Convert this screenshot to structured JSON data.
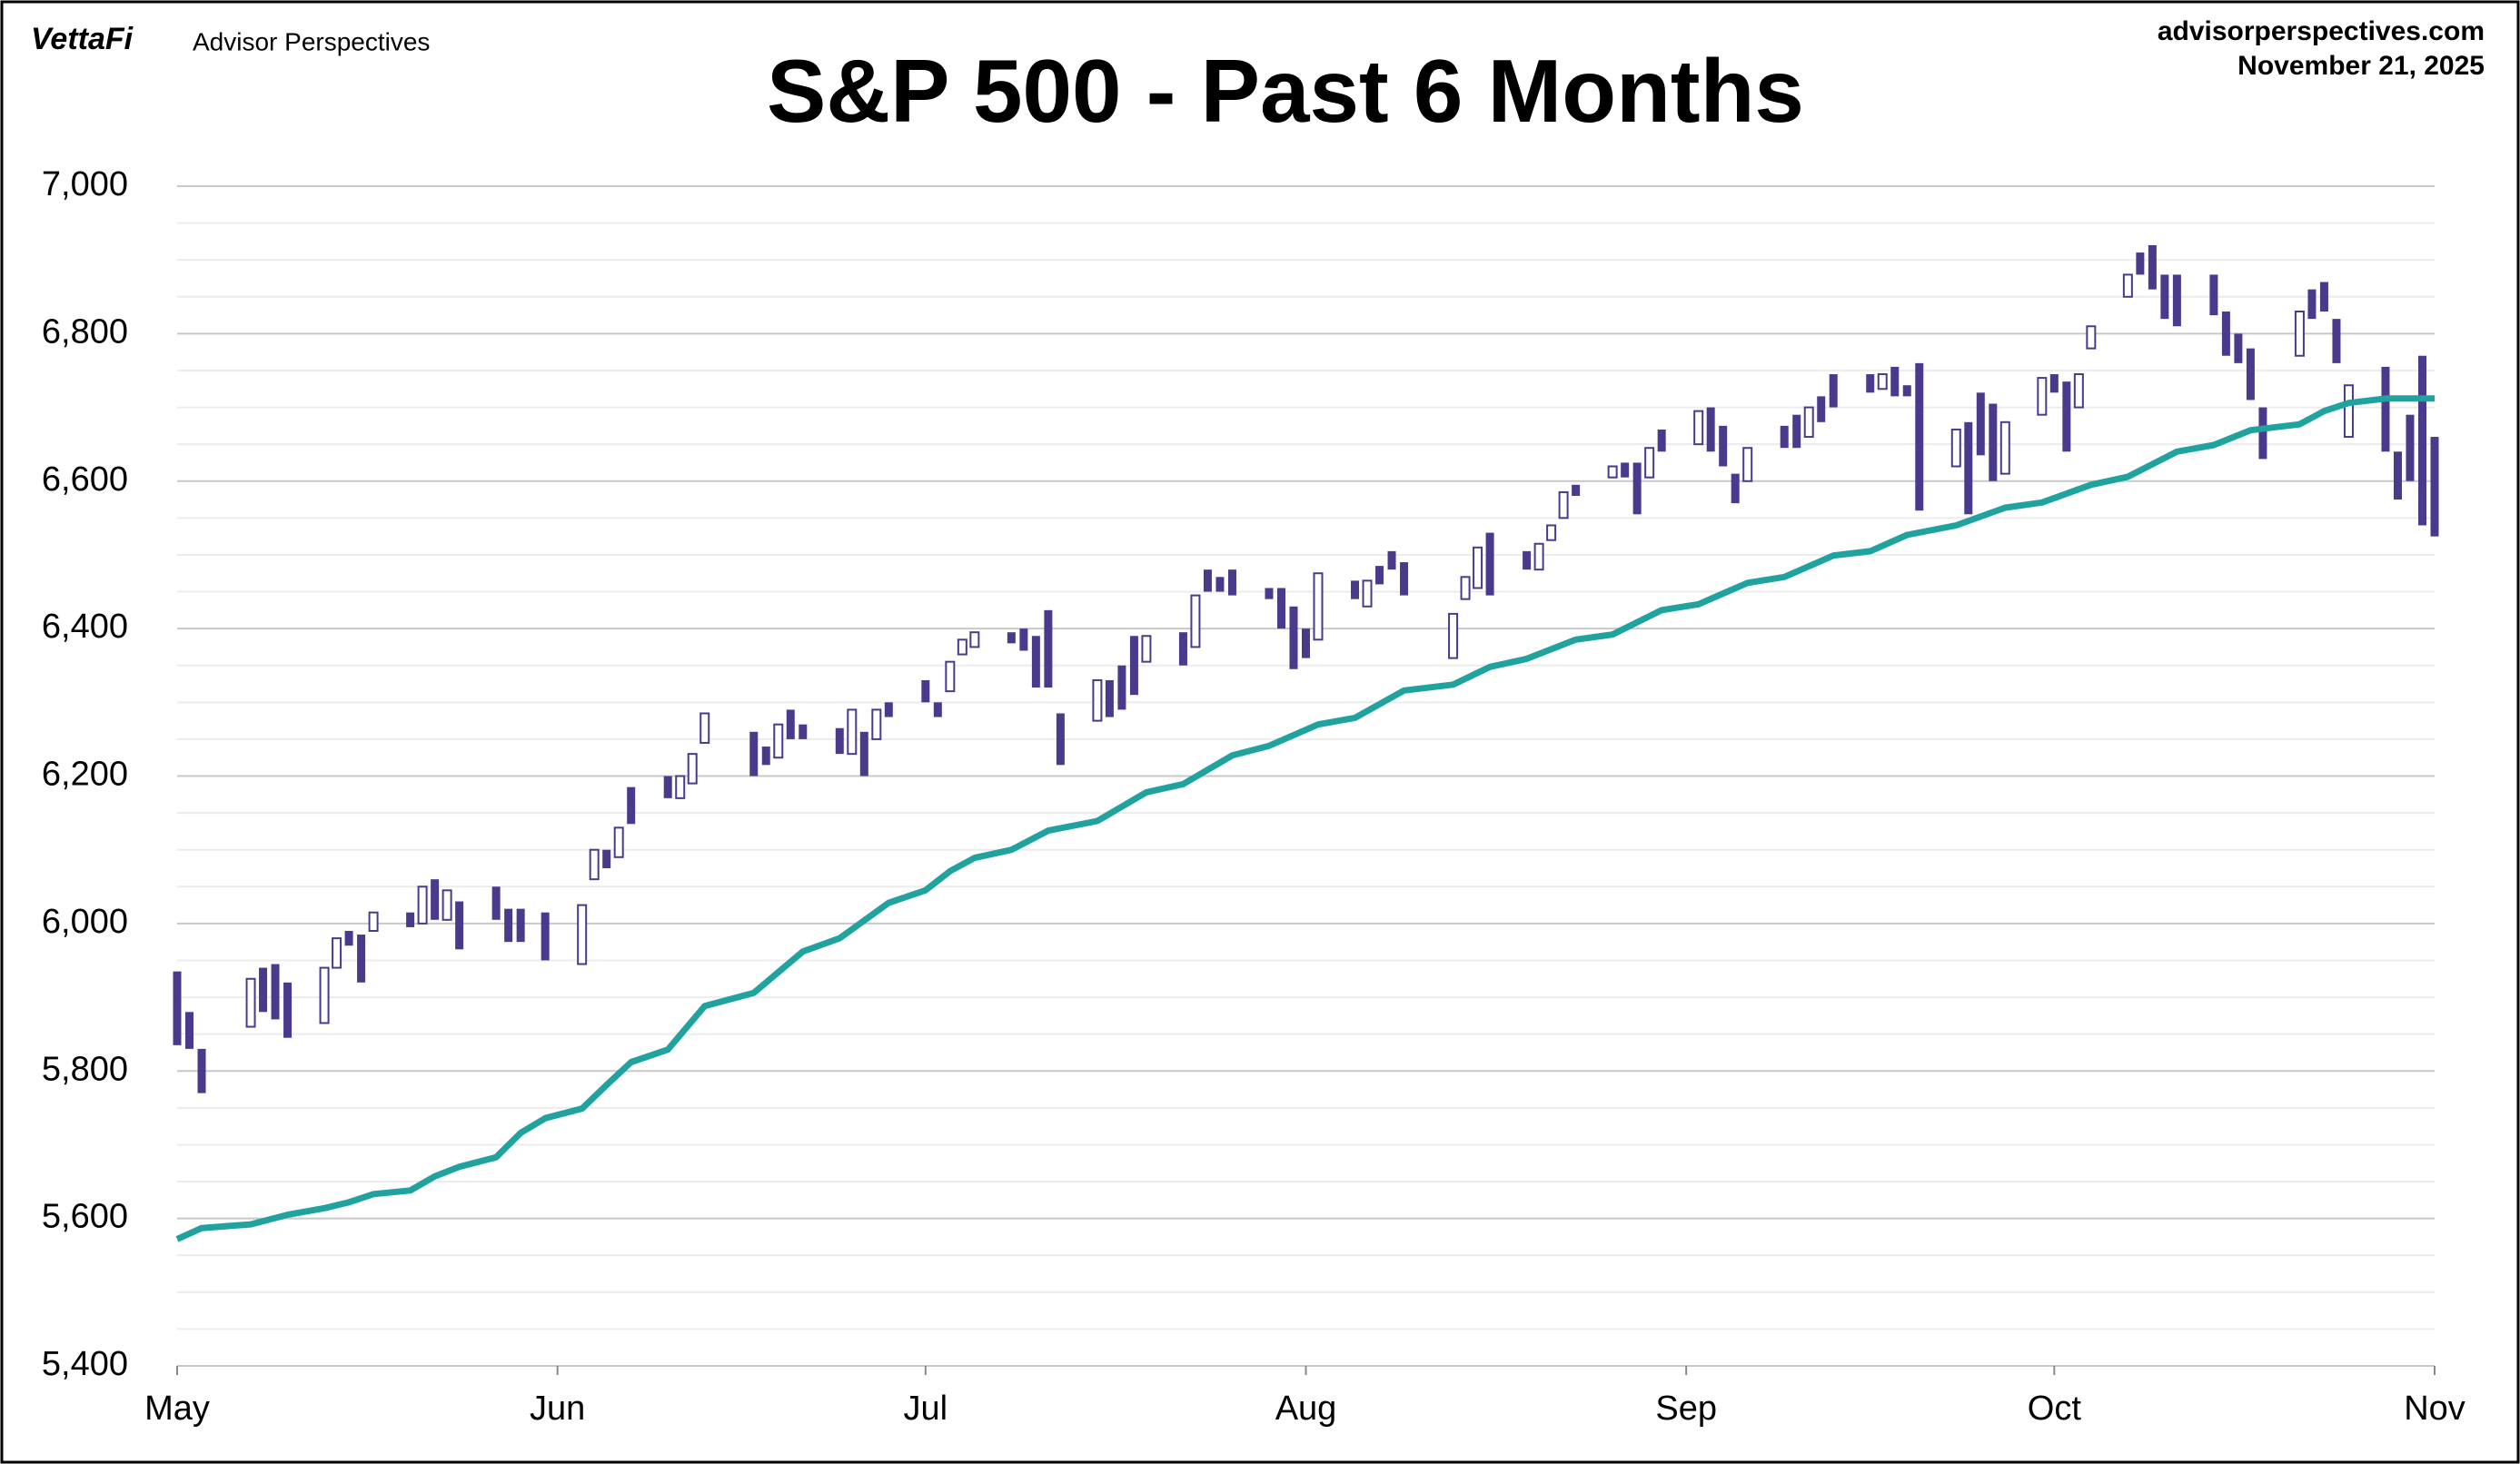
{
  "header": {
    "brand": "VettaFi",
    "publisher": "Advisor Perspectives",
    "website": "advisorperspectives.com",
    "date": "November 21, 2025"
  },
  "chart_data": {
    "type": "candlestick",
    "title": "S&P 500 - Past 6 Months",
    "xlim": [
      0,
      184
    ],
    "xticks": [
      {
        "value": 0,
        "label": "May"
      },
      {
        "value": 31,
        "label": "Jun"
      },
      {
        "value": 61,
        "label": "Jul"
      },
      {
        "value": 92,
        "label": "Aug"
      },
      {
        "value": 123,
        "label": "Sep"
      },
      {
        "value": 153,
        "label": "Oct"
      },
      {
        "value": 184,
        "label": "Nov"
      }
    ],
    "ylim": [
      5400,
      7000
    ],
    "yticks": [
      {
        "value": 5400,
        "label": "5,400"
      },
      {
        "value": 5600,
        "label": "5,600"
      },
      {
        "value": 5800,
        "label": "5,800"
      },
      {
        "value": 6000,
        "label": "6,000"
      },
      {
        "value": 6200,
        "label": "6,200"
      },
      {
        "value": 6400,
        "label": "6,400"
      },
      {
        "value": 6600,
        "label": "6,600"
      },
      {
        "value": 6800,
        "label": "6,800"
      },
      {
        "value": 7000,
        "label": "7,000"
      }
    ],
    "minor_yticks": [
      5450,
      5500,
      5550,
      5650,
      5700,
      5750,
      5850,
      5900,
      5950,
      6050,
      6100,
      6150,
      6250,
      6300,
      6350,
      6450,
      6500,
      6550,
      6650,
      6700,
      6750,
      6850,
      6900,
      6950
    ],
    "grid": true,
    "candles": {
      "color": "#4b3a8c",
      "x": [
        0,
        1,
        2,
        6,
        7,
        8,
        9,
        12,
        13,
        14,
        15,
        16,
        19,
        20,
        21,
        22,
        23,
        26,
        27,
        28,
        30,
        33,
        34,
        35,
        36,
        37,
        40,
        41,
        42,
        43,
        47,
        48,
        49,
        50,
        51,
        54,
        55,
        56,
        57,
        58,
        61,
        62,
        63,
        64,
        65,
        68,
        69,
        70,
        71,
        72,
        75,
        76,
        77,
        78,
        79,
        82,
        83,
        84,
        85,
        86,
        89,
        90,
        91,
        92,
        93,
        96,
        97,
        98,
        99,
        100,
        104,
        105,
        106,
        107,
        110,
        111,
        112,
        113,
        114,
        117,
        118,
        119,
        120,
        121,
        124,
        125,
        126,
        127,
        128,
        131,
        132,
        133,
        134,
        135,
        138,
        139,
        140,
        141,
        142,
        145,
        146,
        147,
        148,
        149,
        152,
        153,
        154,
        155,
        156,
        159,
        160,
        161,
        162,
        163,
        166,
        167,
        168,
        169,
        170,
        173,
        174,
        175,
        176,
        177,
        180,
        181,
        182,
        183,
        184
      ],
      "open": [
        5935,
        5880,
        5830,
        5860,
        5940,
        5945,
        5920,
        5865,
        5940,
        5990,
        5985,
        5990,
        6015,
        6000,
        6060,
        6005,
        6030,
        6050,
        6020,
        6020,
        6015,
        5945,
        6060,
        6100,
        6090,
        6185,
        6200,
        6170,
        6190,
        6245,
        6260,
        6240,
        6225,
        6290,
        6270,
        6265,
        6230,
        6260,
        6250,
        6300,
        6330,
        6300,
        6315,
        6365,
        6375,
        6395,
        6400,
        6390,
        6425,
        6285,
        6275,
        6330,
        6350,
        6390,
        6355,
        6395,
        6375,
        6480,
        6470,
        6480,
        6455,
        6455,
        6430,
        6400,
        6385,
        6465,
        6430,
        6485,
        6505,
        6490,
        6360,
        6440,
        6455,
        6530,
        6505,
        6480,
        6520,
        6550,
        6595,
        6605,
        6625,
        6625,
        6605,
        6670,
        6650,
        6700,
        6675,
        6610,
        6600,
        6675,
        6690,
        6660,
        6715,
        6745,
        6745,
        6725,
        6755,
        6730,
        6760,
        6620,
        6680,
        6720,
        6705,
        6610,
        6690,
        6745,
        6735,
        6700,
        6780,
        6850,
        6910,
        6920,
        6880,
        6880,
        6880,
        6830,
        6800,
        6780,
        6700,
        6770,
        6860,
        6870,
        6820,
        6660,
        6755,
        6640,
        6690,
        6770,
        6660
      ],
      "close": [
        5835,
        5830,
        5770,
        5925,
        5880,
        5870,
        5845,
        5940,
        5980,
        5970,
        5920,
        6015,
        5995,
        6050,
        6005,
        6045,
        5965,
        6005,
        5975,
        5975,
        5950,
        6025,
        6100,
        6075,
        6130,
        6135,
        6170,
        6200,
        6230,
        6285,
        6200,
        6215,
        6270,
        6250,
        6250,
        6230,
        6290,
        6200,
        6290,
        6280,
        6300,
        6280,
        6355,
        6385,
        6395,
        6380,
        6370,
        6320,
        6320,
        6215,
        6330,
        6280,
        6290,
        6310,
        6390,
        6350,
        6445,
        6450,
        6450,
        6445,
        6440,
        6400,
        6345,
        6360,
        6475,
        6440,
        6465,
        6460,
        6480,
        6445,
        6420,
        6470,
        6510,
        6445,
        6480,
        6515,
        6540,
        6585,
        6580,
        6620,
        6605,
        6555,
        6645,
        6640,
        6695,
        6640,
        6620,
        6570,
        6645,
        6645,
        6645,
        6700,
        6680,
        6700,
        6720,
        6745,
        6715,
        6715,
        6560,
        6670,
        6555,
        6635,
        6600,
        6680,
        6740,
        6720,
        6640,
        6745,
        6810,
        6880,
        6880,
        6860,
        6820,
        6810,
        6825,
        6770,
        6760,
        6710,
        6630,
        6830,
        6820,
        6830,
        6760,
        6730,
        6640,
        6575,
        6600,
        6540,
        6525
      ]
    },
    "series": [
      {
        "color": "#20a39e",
        "x": [
          0,
          2,
          6,
          9,
          12,
          14,
          16,
          19,
          21,
          23,
          26,
          28,
          30,
          33,
          35,
          37,
          40,
          43,
          47,
          51,
          54,
          56,
          58,
          61,
          63,
          65,
          68,
          71,
          75,
          79,
          82,
          86,
          89,
          93,
          96,
          100,
          104,
          107,
          110,
          114,
          117,
          121,
          124,
          128,
          131,
          135,
          138,
          141,
          145,
          149,
          152,
          156,
          159,
          163,
          166,
          169,
          173,
          175,
          177,
          180,
          184
        ],
        "values": [
          5572,
          5587,
          5592,
          5605,
          5614,
          5622,
          5633,
          5638,
          5657,
          5670,
          5683,
          5716,
          5736,
          5749,
          5781,
          5812,
          5829,
          5888,
          5906,
          5962,
          5980,
          6004,
          6028,
          6045,
          6071,
          6089,
          6100,
          6126,
          6139,
          6178,
          6189,
          6228,
          6241,
          6270,
          6279,
          6316,
          6324,
          6348,
          6359,
          6385,
          6392,
          6425,
          6433,
          6462,
          6470,
          6499,
          6505,
          6527,
          6540,
          6564,
          6571,
          6595,
          6606,
          6640,
          6649,
          6669,
          6677,
          6695,
          6706,
          6712,
          6712
        ]
      }
    ]
  }
}
